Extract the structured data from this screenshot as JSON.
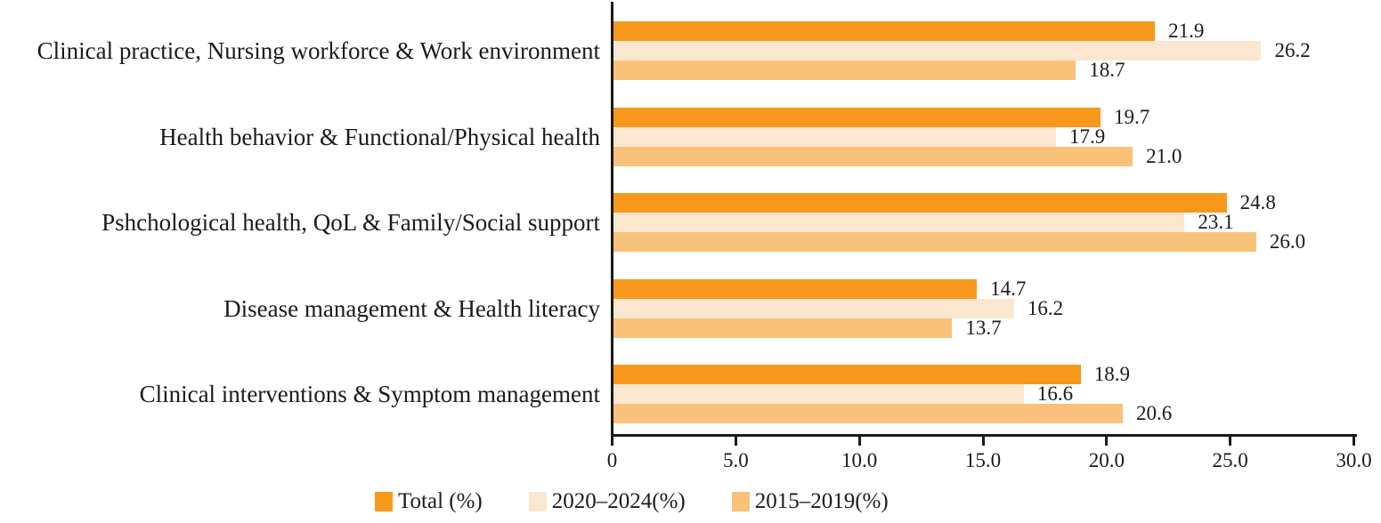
{
  "page": {
    "background": "#ffffff"
  },
  "chart_data": {
    "type": "bar",
    "orientation": "horizontal",
    "title": "",
    "xlabel": "",
    "ylabel": "",
    "xlim": [
      0,
      30
    ],
    "grid": false,
    "legend_position": "bottom",
    "axis_color": "#1a1a1a",
    "text_color": "#1b1b1b",
    "categories": [
      "Clinical practice, Nursing workforce & Work environment",
      "Health behavior & Functional/Physical health",
      "Pshchological health, QoL & Family/Social support",
      "Disease management & Health literacy",
      "Clinical interventions & Symptom management"
    ],
    "series": [
      {
        "name": "Total (%)",
        "color": "#F8991D",
        "values": [
          21.9,
          19.7,
          24.8,
          14.7,
          18.9
        ],
        "labels": [
          "21.9",
          "19.7",
          "24.8",
          "14.7",
          "18.9"
        ]
      },
      {
        "name": "2020–2024(%)",
        "color": "#FBE7CF",
        "values": [
          26.2,
          17.9,
          23.1,
          16.2,
          16.6
        ],
        "labels": [
          "26.2",
          "17.9",
          "23.1",
          "16.2",
          "16.6"
        ]
      },
      {
        "name": "2015–2019(%)",
        "color": "#F9C27B",
        "values": [
          18.7,
          21.0,
          26.0,
          13.7,
          20.6
        ],
        "labels": [
          "18.7",
          "21.0",
          "26.0",
          "13.7",
          "20.6"
        ]
      }
    ],
    "x_ticks": [
      {
        "value": 0,
        "label": "0"
      },
      {
        "value": 5,
        "label": "5.0"
      },
      {
        "value": 10,
        "label": "10.0"
      },
      {
        "value": 15,
        "label": "15.0"
      },
      {
        "value": 20,
        "label": "20.0"
      },
      {
        "value": 25,
        "label": "25.0"
      },
      {
        "value": 30,
        "label": "30.0"
      }
    ]
  }
}
